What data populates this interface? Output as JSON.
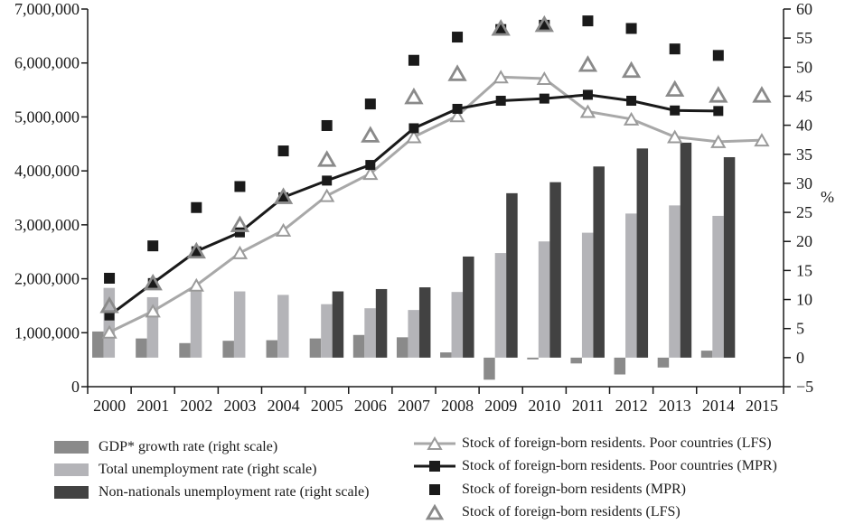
{
  "chart_data": {
    "type": "combo",
    "title": "",
    "x_categories": [
      "2000",
      "2001",
      "2002",
      "2003",
      "2004",
      "2005",
      "2006",
      "2007",
      "2008",
      "2009",
      "2010",
      "2011",
      "2012",
      "2013",
      "2014",
      "2015"
    ],
    "left_axis": {
      "min": 0,
      "max": 7000000,
      "tick_interval": 1000000,
      "tick_labels": [
        "0",
        "1,000,000",
        "2,000,000",
        "3,000,000",
        "4,000,000",
        "5,000,000",
        "6,000,000",
        "7,000,000"
      ]
    },
    "right_axis": {
      "min": -5,
      "max": 60,
      "tick_interval": 5,
      "unit": "%",
      "tick_labels": [
        "−5",
        "0",
        "5",
        "10",
        "15",
        "20",
        "25",
        "30",
        "35",
        "40",
        "45",
        "50",
        "55",
        "60"
      ]
    },
    "grid": "off",
    "legend_position": "bottom",
    "series": [
      {
        "name": "GDP* growth rate (right scale)",
        "type": "bar",
        "axis": "right",
        "color": "#8a8a8a",
        "values": [
          4.5,
          3.3,
          2.5,
          2.9,
          3.0,
          3.3,
          3.9,
          3.5,
          0.9,
          -3.8,
          -0.3,
          -1.0,
          -2.9,
          -1.7,
          1.2,
          null
        ]
      },
      {
        "name": "Total unemployment rate (right scale)",
        "type": "bar",
        "axis": "right",
        "color": "#b4b4b8",
        "values": [
          12.0,
          10.4,
          11.4,
          11.4,
          10.8,
          9.2,
          8.5,
          8.2,
          11.3,
          18.0,
          20.0,
          21.5,
          24.8,
          26.2,
          24.4,
          null
        ]
      },
      {
        "name": "Non-nationals unemployment rate (right scale)",
        "type": "bar",
        "axis": "right",
        "color": "#424242",
        "values": [
          null,
          null,
          null,
          null,
          null,
          11.4,
          11.8,
          12.1,
          17.4,
          28.3,
          30.2,
          32.9,
          36.0,
          37.0,
          34.5,
          null
        ]
      },
      {
        "name": "Stock of foreign-born residents. Poor countries (LFS)",
        "type": "line",
        "axis": "left",
        "color": "#a8a8a8",
        "marker": "open-triangle-white",
        "values": [
          1010000,
          1400000,
          1880000,
          2480000,
          2900000,
          3540000,
          3950000,
          4630000,
          5020000,
          5740000,
          5710000,
          5100000,
          4960000,
          4630000,
          4540000,
          4570000
        ]
      },
      {
        "name": "Stock of foreign-born residents. Poor countries (MPR)",
        "type": "line",
        "axis": "left",
        "color": "#1a1a1a",
        "marker": "filled-square",
        "values": [
          1320000,
          1920000,
          2510000,
          2860000,
          3510000,
          3820000,
          4110000,
          4790000,
          5150000,
          5300000,
          5340000,
          5410000,
          5300000,
          5120000,
          5110000,
          null
        ]
      },
      {
        "name": "Stock of foreign-born residents (MPR)",
        "type": "scatter",
        "axis": "left",
        "color": "#1a1a1a",
        "marker": "filled-square",
        "values": [
          2010000,
          2610000,
          3320000,
          3710000,
          4370000,
          4840000,
          5240000,
          6050000,
          6480000,
          6620000,
          6700000,
          6780000,
          6640000,
          6260000,
          6140000,
          null
        ]
      },
      {
        "name": "Stock of foreign-born residents (LFS)",
        "type": "scatter",
        "axis": "left",
        "color": "#8a8a8a",
        "marker": "open-triangle",
        "values": [
          1510000,
          1930000,
          2520000,
          3010000,
          3530000,
          4220000,
          4670000,
          5380000,
          5810000,
          6650000,
          6720000,
          5980000,
          5870000,
          5520000,
          5410000,
          5410000
        ]
      }
    ]
  }
}
